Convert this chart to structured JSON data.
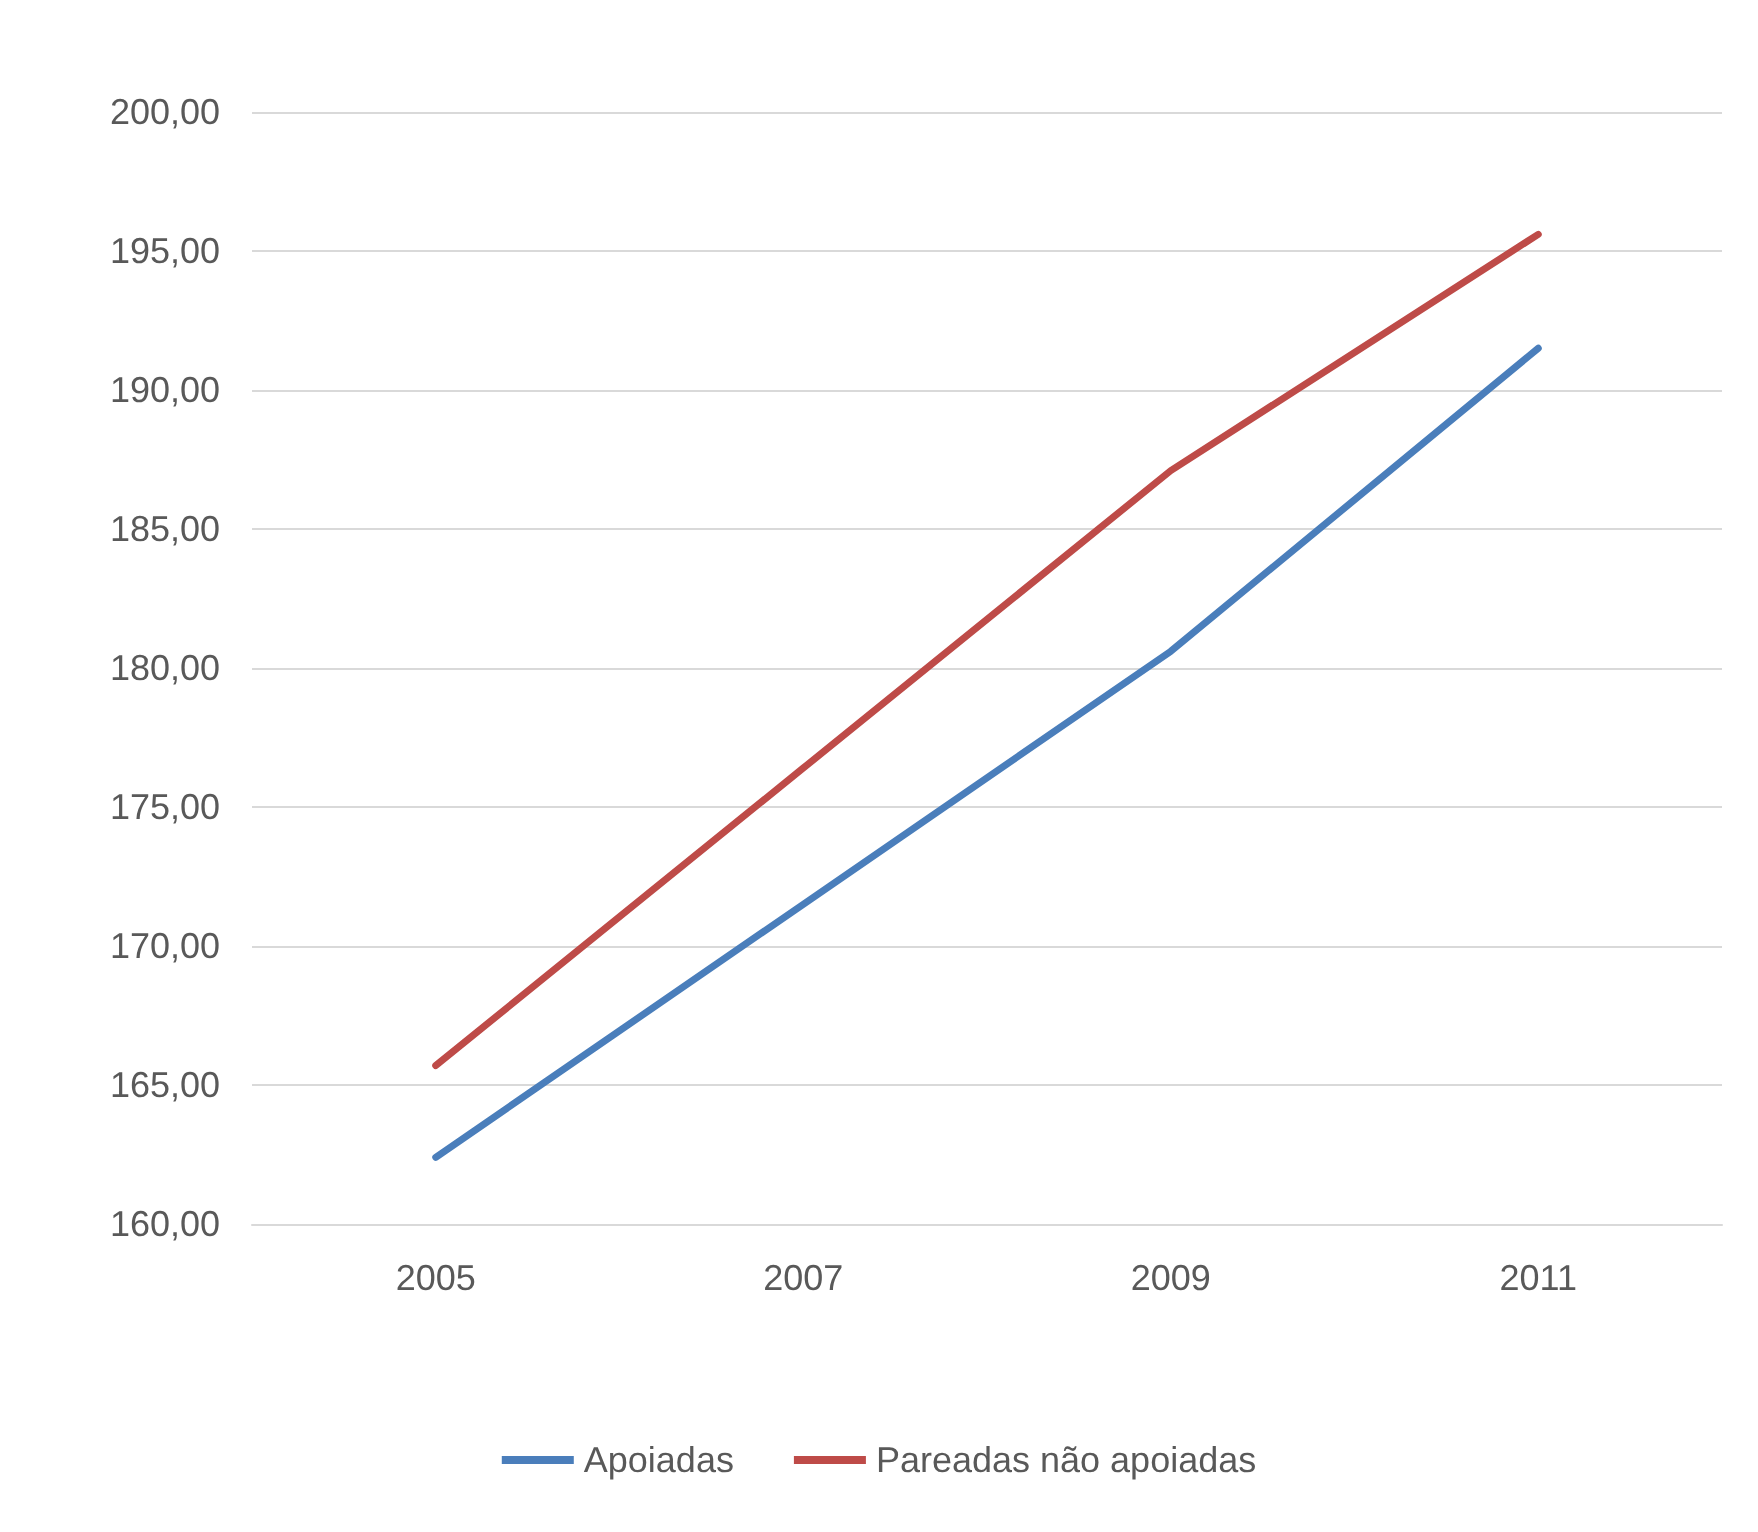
{
  "chart_data": {
    "type": "line",
    "categories": [
      "2005",
      "2007",
      "2009",
      "2011"
    ],
    "series": [
      {
        "name": "Apoiadas",
        "color": "#4a7ebb",
        "values": [
          162.4,
          171.5,
          180.6,
          191.5
        ]
      },
      {
        "name": "Pareadas não apoiadas",
        "color": "#be4b48",
        "values": [
          165.7,
          176.4,
          187.1,
          195.6
        ]
      }
    ],
    "ylim": [
      160,
      200
    ],
    "yticks": [
      {
        "value": 160,
        "label": "160,00"
      },
      {
        "value": 165,
        "label": "165,00"
      },
      {
        "value": 170,
        "label": "170,00"
      },
      {
        "value": 175,
        "label": "175,00"
      },
      {
        "value": 180,
        "label": "180,00"
      },
      {
        "value": 185,
        "label": "185,00"
      },
      {
        "value": 190,
        "label": "190,00"
      },
      {
        "value": 195,
        "label": "195,00"
      },
      {
        "value": 200,
        "label": "200,00"
      }
    ],
    "grid": "y",
    "legend": "bottom",
    "marker": "none",
    "line_style": "solid"
  }
}
